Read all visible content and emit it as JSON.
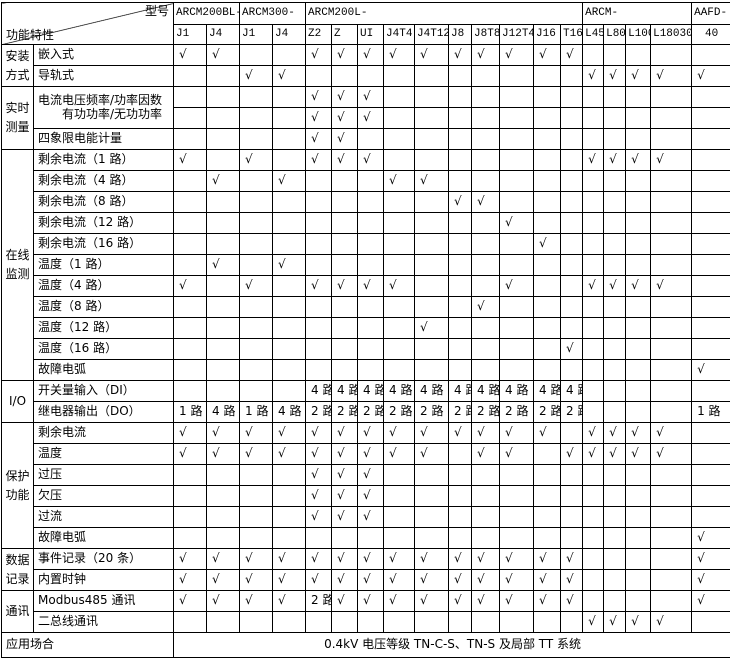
{
  "table": {
    "corner": {
      "top_right_label": "型号",
      "bottom_left_label": "功能特性"
    },
    "check_mark": "√",
    "column_groups": [
      {
        "label": "ARCM200BL-",
        "span": 2
      },
      {
        "label": "ARCM300-",
        "span": 2
      },
      {
        "label": "ARCM200L-",
        "span": 10
      },
      {
        "label": "ARCM-",
        "span": 4
      },
      {
        "label": "AAFD-",
        "span": 1
      }
    ],
    "columns": [
      "J1",
      "J4",
      "J1",
      "J4",
      "Z2",
      "Z",
      "UI",
      "J4T4",
      "J4T12",
      "J8",
      "J8T8",
      "J12T4",
      "J16",
      "T16",
      "L45",
      "L80",
      "L100",
      "L18030",
      "40"
    ],
    "row_groups": [
      {
        "label": "安装方式",
        "lines": [
          "安装",
          "方式"
        ],
        "rows": [
          {
            "label": "嵌入式",
            "cells": [
              "√",
              "√",
              "",
              "",
              "√",
              "√",
              "√",
              "√",
              "√",
              "√",
              "√",
              "√",
              "√",
              "√",
              "",
              "",
              "",
              "",
              ""
            ]
          },
          {
            "label": "导轨式",
            "cells": [
              "",
              "",
              "√",
              "√",
              "",
              "",
              "",
              "",
              "",
              "",
              "",
              "",
              "",
              "",
              "√",
              "√",
              "√",
              "√",
              "√"
            ]
          }
        ]
      },
      {
        "label": "实时测量",
        "lines": [
          "实时",
          "测量"
        ],
        "merged_label_rows": true,
        "rows": [
          {
            "label": "电流电压频率/功率因数",
            "cells": [
              "",
              "",
              "",
              "",
              "√",
              "√",
              "√",
              "",
              "",
              "",
              "",
              "",
              "",
              "",
              "",
              "",
              "",
              "",
              ""
            ]
          },
          {
            "label": "有功功率/无功功率",
            "cells": [
              "",
              "",
              "",
              "",
              "√",
              "√",
              "√",
              "",
              "",
              "",
              "",
              "",
              "",
              "",
              "",
              "",
              "",
              "",
              ""
            ]
          },
          {
            "label": "四象限电能计量",
            "cells": [
              "",
              "",
              "",
              "",
              "√",
              "√",
              "",
              "",
              "",
              "",
              "",
              "",
              "",
              "",
              "",
              "",
              "",
              "",
              ""
            ]
          }
        ]
      },
      {
        "label": "在线监测",
        "lines": [
          "在线",
          "监测"
        ],
        "rows": [
          {
            "label": "剩余电流（1 路）",
            "cells": [
              "√",
              "",
              "√",
              "",
              "√",
              "√",
              "√",
              "",
              "",
              "",
              "",
              "",
              "",
              "",
              "√",
              "√",
              "√",
              "√",
              ""
            ]
          },
          {
            "label": "剩余电流（4 路）",
            "cells": [
              "",
              "√",
              "",
              "√",
              "",
              "",
              "",
              "√",
              "√",
              "",
              "",
              "",
              "",
              "",
              "",
              "",
              "",
              "",
              ""
            ]
          },
          {
            "label": "剩余电流（8 路）",
            "cells": [
              "",
              "",
              "",
              "",
              "",
              "",
              "",
              "",
              "",
              "√",
              "√",
              "",
              "",
              "",
              "",
              "",
              "",
              "",
              ""
            ]
          },
          {
            "label": "剩余电流（12 路）",
            "cells": [
              "",
              "",
              "",
              "",
              "",
              "",
              "",
              "",
              "",
              "",
              "",
              "√",
              "",
              "",
              "",
              "",
              "",
              "",
              ""
            ]
          },
          {
            "label": "剩余电流（16 路）",
            "cells": [
              "",
              "",
              "",
              "",
              "",
              "",
              "",
              "",
              "",
              "",
              "",
              "",
              "√",
              "",
              "",
              "",
              "",
              "",
              ""
            ]
          },
          {
            "label": "温度（1 路）",
            "cells": [
              "",
              "√",
              "",
              "√",
              "",
              "",
              "",
              "",
              "",
              "",
              "",
              "",
              "",
              "",
              "",
              "",
              "",
              "",
              ""
            ]
          },
          {
            "label": "温度（4 路）",
            "cells": [
              "√",
              "",
              "√",
              "",
              "√",
              "√",
              "√",
              "√",
              "",
              "",
              "",
              "√",
              "",
              "",
              "√",
              "√",
              "√",
              "√",
              ""
            ]
          },
          {
            "label": "温度（8 路）",
            "cells": [
              "",
              "",
              "",
              "",
              "",
              "",
              "",
              "",
              "",
              "",
              "√",
              "",
              "",
              "",
              "",
              "",
              "",
              "",
              ""
            ]
          },
          {
            "label": "温度（12 路）",
            "cells": [
              "",
              "",
              "",
              "",
              "",
              "",
              "",
              "",
              "√",
              "",
              "",
              "",
              "",
              "",
              "",
              "",
              "",
              "",
              ""
            ]
          },
          {
            "label": "温度（16 路）",
            "cells": [
              "",
              "",
              "",
              "",
              "",
              "",
              "",
              "",
              "",
              "",
              "",
              "",
              "",
              "√",
              "",
              "",
              "",
              "",
              ""
            ]
          },
          {
            "label": "故障电弧",
            "cells": [
              "",
              "",
              "",
              "",
              "",
              "",
              "",
              "",
              "",
              "",
              "",
              "",
              "",
              "",
              "",
              "",
              "",
              "",
              "√"
            ]
          }
        ]
      },
      {
        "label": "I/O",
        "lines": [
          "I/O"
        ],
        "rows": [
          {
            "label": "开关量输入（DI）",
            "cells": [
              "",
              "",
              "",
              "",
              "4 路",
              "4 路",
              "4 路",
              "4 路",
              "4 路",
              "4 路",
              "4 路",
              "4 路",
              "4 路",
              "4 路",
              "",
              "",
              "",
              "",
              ""
            ]
          },
          {
            "label": "继电器输出（DO）",
            "cells": [
              "1 路",
              "4 路",
              "1 路",
              "4 路",
              "2 路",
              "2 路",
              "2 路",
              "2 路",
              "2 路",
              "2 路",
              "2 路",
              "2 路",
              "2 路",
              "2 路",
              "",
              "",
              "",
              "",
              "1 路"
            ]
          }
        ]
      },
      {
        "label": "保护功能",
        "lines": [
          "保护",
          "功能"
        ],
        "rows": [
          {
            "label": "剩余电流",
            "cells": [
              "√",
              "√",
              "√",
              "√",
              "√",
              "√",
              "√",
              "√",
              "√",
              "√",
              "√",
              "√",
              "√",
              "",
              "√",
              "√",
              "√",
              "√",
              ""
            ]
          },
          {
            "label": "温度",
            "cells": [
              "√",
              "√",
              "√",
              "√",
              "√",
              "√",
              "√",
              "√",
              "√",
              "",
              "√",
              "√",
              "",
              "√",
              "√",
              "√",
              "√",
              "√",
              ""
            ]
          },
          {
            "label": "过压",
            "cells": [
              "",
              "",
              "",
              "",
              "√",
              "√",
              "√",
              "",
              "",
              "",
              "",
              "",
              "",
              "",
              "",
              "",
              "",
              "",
              ""
            ]
          },
          {
            "label": "欠压",
            "cells": [
              "",
              "",
              "",
              "",
              "√",
              "√",
              "√",
              "",
              "",
              "",
              "",
              "",
              "",
              "",
              "",
              "",
              "",
              "",
              ""
            ]
          },
          {
            "label": "过流",
            "cells": [
              "",
              "",
              "",
              "",
              "√",
              "√",
              "√",
              "",
              "",
              "",
              "",
              "",
              "",
              "",
              "",
              "",
              "",
              "",
              ""
            ]
          },
          {
            "label": "故障电弧",
            "cells": [
              "",
              "",
              "",
              "",
              "",
              "",
              "",
              "",
              "",
              "",
              "",
              "",
              "",
              "",
              "",
              "",
              "",
              "",
              "√"
            ]
          }
        ]
      },
      {
        "label": "数据记录",
        "lines": [
          "数据",
          "记录"
        ],
        "rows": [
          {
            "label": "事件记录（20 条）",
            "cells": [
              "√",
              "√",
              "√",
              "√",
              "√",
              "√",
              "√",
              "√",
              "√",
              "√",
              "√",
              "√",
              "√",
              "√",
              "",
              "",
              "",
              "",
              "√"
            ]
          },
          {
            "label": "内置时钟",
            "cells": [
              "√",
              "√",
              "√",
              "√",
              "√",
              "√",
              "√",
              "√",
              "√",
              "√",
              "√",
              "√",
              "√",
              "√",
              "",
              "",
              "",
              "",
              "√"
            ]
          }
        ]
      },
      {
        "label": "通讯",
        "lines": [
          "通讯"
        ],
        "rows": [
          {
            "label": "Modbus485 通讯",
            "cells": [
              "√",
              "√",
              "√",
              "√",
              "2 路",
              "√",
              "√",
              "√",
              "√",
              "√",
              "√",
              "√",
              "√",
              "√",
              "",
              "",
              "",
              "",
              "√"
            ]
          },
          {
            "label": "二总线通讯",
            "cells": [
              "",
              "",
              "",
              "",
              "",
              "",
              "",
              "",
              "",
              "",
              "",
              "",
              "",
              "",
              "√",
              "√",
              "√",
              "√",
              ""
            ]
          }
        ]
      }
    ],
    "footer": {
      "label": "应用场合",
      "value": "0.4kV 电压等级 TN-C-S、TN-S 及局部 TT 系统"
    }
  },
  "colors": {
    "border": "#000000",
    "background": "#ffffff",
    "text": "#000000"
  }
}
